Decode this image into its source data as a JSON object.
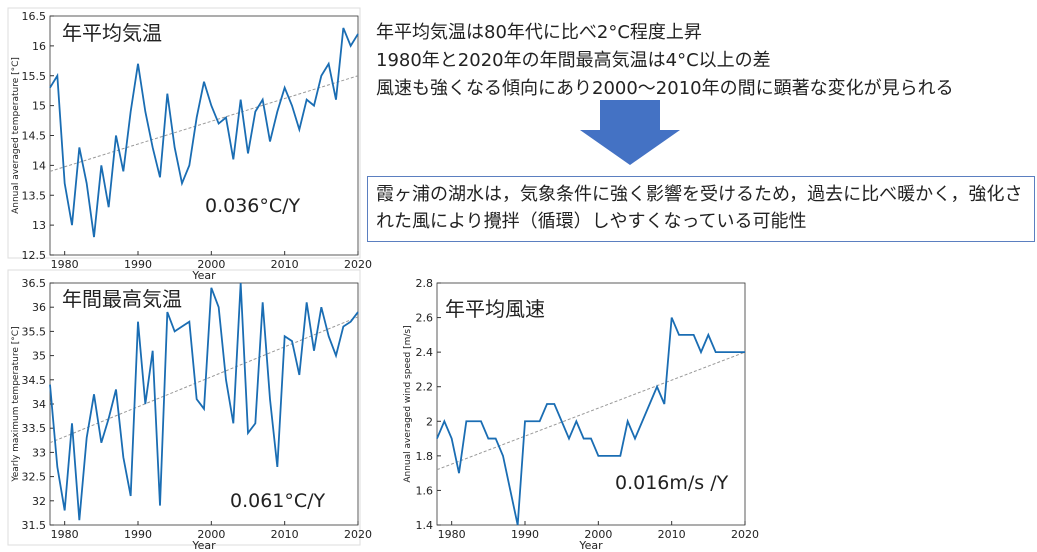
{
  "chart_data": [
    {
      "type": "line",
      "title": "年平均気温",
      "annotation": "0.036°C/Y",
      "xlabel": "Year",
      "ylabel": "Annual averaged temperature [°C]",
      "color": "#1a6db3",
      "x": [
        1978,
        1979,
        1980,
        1981,
        1982,
        1983,
        1984,
        1985,
        1986,
        1987,
        1988,
        1989,
        1990,
        1991,
        1992,
        1993,
        1994,
        1995,
        1996,
        1997,
        1998,
        1999,
        2000,
        2001,
        2002,
        2003,
        2004,
        2005,
        2006,
        2007,
        2008,
        2009,
        2010,
        2011,
        2012,
        2013,
        2014,
        2015,
        2016,
        2017,
        2018,
        2019,
        2020
      ],
      "values": [
        15.3,
        15.5,
        13.7,
        13.0,
        14.3,
        13.7,
        12.8,
        14.0,
        13.3,
        14.5,
        13.9,
        14.9,
        15.7,
        14.9,
        14.3,
        13.8,
        15.2,
        14.3,
        13.7,
        14.0,
        14.8,
        15.4,
        15.0,
        14.7,
        14.8,
        14.1,
        15.1,
        14.2,
        14.9,
        15.1,
        14.4,
        14.9,
        15.3,
        15.0,
        14.6,
        15.1,
        15.0,
        15.5,
        15.7,
        15.1,
        16.3,
        16.0,
        16.2
      ],
      "trend": {
        "x": [
          1978,
          2020
        ],
        "values": [
          13.9,
          15.5
        ],
        "color": "#999999"
      },
      "xlim": [
        1978,
        2020
      ],
      "xticks": [
        1980,
        1990,
        2000,
        2010,
        2020
      ],
      "ylim": [
        12.5,
        16.5
      ],
      "yticks": [
        12.5,
        13,
        13.5,
        14,
        14.5,
        15,
        15.5,
        16,
        16.5
      ]
    },
    {
      "type": "line",
      "title": "年間最高気温",
      "annotation": "0.061°C/Y",
      "xlabel": "Year",
      "ylabel": "Yearly maximum temperature [°C]",
      "color": "#1a6db3",
      "x": [
        1978,
        1979,
        1980,
        1981,
        1982,
        1983,
        1984,
        1985,
        1986,
        1987,
        1988,
        1989,
        1990,
        1991,
        1992,
        1993,
        1994,
        1995,
        1996,
        1997,
        1998,
        1999,
        2000,
        2001,
        2002,
        2003,
        2004,
        2005,
        2006,
        2007,
        2008,
        2009,
        2010,
        2011,
        2012,
        2013,
        2014,
        2015,
        2016,
        2017,
        2018,
        2019,
        2020
      ],
      "values": [
        34.4,
        32.7,
        31.8,
        33.6,
        31.6,
        33.3,
        34.2,
        33.2,
        33.7,
        34.3,
        32.9,
        32.1,
        35.7,
        34.0,
        35.1,
        31.9,
        35.9,
        35.5,
        35.6,
        35.7,
        34.1,
        33.9,
        36.4,
        36.0,
        34.5,
        33.6,
        36.5,
        33.4,
        33.6,
        36.1,
        34.1,
        32.7,
        35.4,
        35.3,
        34.6,
        36.1,
        35.1,
        36.0,
        35.4,
        35.0,
        35.6,
        35.7,
        35.9
      ],
      "trend": {
        "x": [
          1978,
          2020
        ],
        "values": [
          33.2,
          35.8
        ],
        "color": "#999999"
      },
      "xlim": [
        1978,
        2020
      ],
      "xticks": [
        1980,
        1990,
        2000,
        2010,
        2020
      ],
      "ylim": [
        31.5,
        36.5
      ],
      "yticks": [
        31.5,
        32,
        32.5,
        33,
        33.5,
        34,
        34.5,
        35,
        35.5,
        36,
        36.5
      ]
    },
    {
      "type": "line",
      "title": "年平均風速",
      "annotation": "0.016m/s /Y",
      "xlabel": "Year",
      "ylabel": "Annual averaged wind speed [m/s]",
      "color": "#1a6db3",
      "x": [
        1978,
        1979,
        1980,
        1981,
        1982,
        1983,
        1984,
        1985,
        1986,
        1987,
        1988,
        1989,
        1990,
        1991,
        1992,
        1993,
        1994,
        1995,
        1996,
        1997,
        1998,
        1999,
        2000,
        2001,
        2002,
        2003,
        2004,
        2005,
        2006,
        2007,
        2008,
        2009,
        2010,
        2011,
        2012,
        2013,
        2014,
        2015,
        2016,
        2017,
        2018,
        2019,
        2020
      ],
      "values": [
        1.9,
        2.0,
        1.9,
        1.7,
        2.0,
        2.0,
        2.0,
        1.9,
        1.9,
        1.8,
        1.6,
        1.4,
        2.0,
        2.0,
        2.0,
        2.1,
        2.1,
        2.0,
        1.9,
        2.0,
        1.9,
        1.9,
        1.8,
        1.8,
        1.8,
        1.8,
        2.0,
        1.9,
        2.0,
        2.1,
        2.2,
        2.1,
        2.6,
        2.5,
        2.5,
        2.5,
        2.4,
        2.5,
        2.4,
        2.4,
        2.4,
        2.4,
        2.4
      ],
      "trend": {
        "x": [
          1978,
          2020
        ],
        "values": [
          1.72,
          2.4
        ],
        "color": "#999999"
      },
      "xlim": [
        1978,
        2020
      ],
      "xticks": [
        1980,
        1990,
        2000,
        2010,
        2020
      ],
      "ylim": [
        1.4,
        2.8
      ],
      "yticks": [
        1.4,
        1.6,
        1.8,
        2,
        2.2,
        2.4,
        2.6,
        2.8
      ]
    }
  ],
  "notes": [
    "年平均気温は80年代に比べ2°C程度上昇",
    "1980年と2020年の年間最高気温は4°C以上の差",
    "風速も強くなる傾向にあり2000～2010年の間に顕著な変化が見られる"
  ],
  "conclusion": "霞ヶ浦の湖水は，気象条件に強く影響を受けるため，過去に比べ暖かく，強化された風により攪拌（循環）しやすくなっている可能性"
}
